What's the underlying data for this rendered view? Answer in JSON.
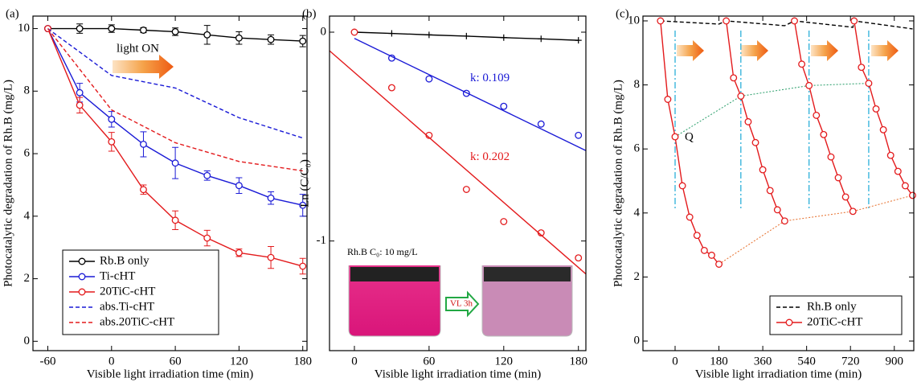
{
  "chart_data": [
    {
      "type": "line",
      "panel_label": "(a)",
      "xlabel": "Visible light irradiation time (min)",
      "ylabel": "Photocatalytic degradation of Rh.B (mg/L)",
      "xlim": [
        -74,
        184
      ],
      "ylim": [
        -0.3,
        10.4
      ],
      "xticks": [
        -60,
        0,
        60,
        120,
        180
      ],
      "yticks": [
        0,
        2,
        4,
        6,
        8,
        10
      ],
      "annotation": "light ON",
      "legend": "lower left",
      "series": [
        {
          "name": "Rb.B only",
          "color": "#000000",
          "style": "solid",
          "marker": "circle",
          "x": [
            -60,
            -30,
            0,
            30,
            60,
            90,
            120,
            150,
            180
          ],
          "values": [
            10,
            10,
            10,
            9.95,
            9.9,
            9.8,
            9.7,
            9.65,
            9.6
          ],
          "errors": [
            0,
            0.15,
            0.12,
            0.08,
            0.12,
            0.3,
            0.2,
            0.15,
            0.18
          ]
        },
        {
          "name": "Ti-cHT",
          "color": "#1a1ad6",
          "style": "solid",
          "marker": "circle",
          "x": [
            -60,
            -30,
            0,
            30,
            60,
            90,
            120,
            150,
            180
          ],
          "values": [
            10,
            7.95,
            7.1,
            6.3,
            5.7,
            5.3,
            4.98,
            4.58,
            4.35
          ],
          "errors": [
            0,
            0.3,
            0.25,
            0.4,
            0.5,
            0.15,
            0.25,
            0.2,
            0.35
          ]
        },
        {
          "name": "20TiC-cHT",
          "color": "#e31a1c",
          "style": "solid",
          "marker": "circle",
          "x": [
            -60,
            -30,
            0,
            30,
            60,
            90,
            120,
            150,
            180
          ],
          "values": [
            10,
            7.55,
            6.38,
            4.85,
            3.87,
            3.3,
            2.83,
            2.68,
            2.4
          ],
          "errors": [
            0,
            0.25,
            0.3,
            0.15,
            0.3,
            0.25,
            0.12,
            0.35,
            0.25
          ]
        },
        {
          "name": "abs.Ti-cHT",
          "color": "#1a1ad6",
          "style": "dashed",
          "marker": "none",
          "x": [
            -60,
            0,
            60,
            120,
            180
          ],
          "values": [
            10,
            8.5,
            8.1,
            7.15,
            6.5
          ]
        },
        {
          "name": "abs.20TiC-cHT",
          "color": "#e31a1c",
          "style": "dashed",
          "marker": "none",
          "x": [
            -60,
            0,
            60,
            120,
            180
          ],
          "values": [
            10,
            7.4,
            6.35,
            5.75,
            5.45
          ]
        }
      ]
    },
    {
      "type": "line",
      "panel_label": "(b)",
      "xlabel": "Visible light irradiation time (min)",
      "ylabel": "Ln (C/C₀)",
      "xlim": [
        -20,
        186
      ],
      "ylim": [
        -1.525,
        0.077
      ],
      "xticks": [
        0,
        60,
        120,
        180
      ],
      "yticks": [
        0,
        -1
      ],
      "inset": {
        "caption": "Rh.B C₀: 10 mg/L",
        "arrow_label": "VL 3h"
      },
      "series": [
        {
          "color": "#000000",
          "style": "solid",
          "marker": "plus",
          "x": [
            0,
            30,
            60,
            90,
            120,
            150,
            180
          ],
          "values": [
            0,
            -0.006,
            -0.013,
            -0.019,
            -0.026,
            -0.032,
            -0.039
          ]
        },
        {
          "color": "#1a1ad6",
          "style": "none",
          "marker": "circle",
          "x": [
            30,
            60,
            90,
            120,
            150,
            180
          ],
          "values": [
            -0.124,
            -0.224,
            -0.293,
            -0.355,
            -0.44,
            -0.494
          ]
        },
        {
          "color": "#e31a1c",
          "style": "none",
          "marker": "circle",
          "x": [
            0,
            30,
            60,
            90,
            120,
            150,
            180
          ],
          "values": [
            0,
            -0.266,
            -0.494,
            -0.753,
            -0.907,
            -0.961,
            -1.081
          ]
        },
        {
          "color": "#1a1ad6",
          "style": "solid",
          "marker": "none",
          "label": "k: 0.109",
          "x": [
            0,
            186
          ],
          "values": [
            -0.03,
            -0.567
          ]
        },
        {
          "color": "#e31a1c",
          "style": "solid",
          "marker": "none",
          "label": "k: 0.202",
          "x": [
            -20,
            186
          ],
          "values": [
            -0.089,
            -1.158
          ]
        }
      ]
    },
    {
      "type": "line",
      "panel_label": "(c)",
      "xlabel": "Visible light irradiation time (min)",
      "ylabel": "Photocatalytic degradation of Rh.B (mg/L)",
      "xlim": [
        -132,
        980
      ],
      "ylim": [
        -0.3,
        10.15
      ],
      "xticks": [
        0,
        180,
        360,
        540,
        720,
        900
      ],
      "yticks": [
        0,
        2,
        4,
        6,
        8,
        10
      ],
      "annotation": "Q",
      "legend": "lower right",
      "vlines": [
        0,
        270,
        550,
        795
      ],
      "vline_color": "#1aa9d6",
      "guide_colors": [
        "#3aa676",
        "#e8793a"
      ],
      "series": [
        {
          "name": "Rh.B only",
          "color": "#000000",
          "style": "dashed",
          "marker": "none",
          "x": [
            -60,
            180,
            210,
            450,
            490,
            730,
            735,
            975
          ],
          "values": [
            10,
            9.9,
            10,
            9.85,
            10,
            9.8,
            10,
            9.75
          ]
        },
        {
          "name": "20TiC-cHT",
          "color": "#e31a1c",
          "style": "solid",
          "marker": "circle",
          "x": [
            -60,
            -30,
            0,
            30,
            60,
            90,
            120,
            150,
            180,
            null,
            210,
            240,
            270,
            300,
            330,
            360,
            390,
            420,
            450,
            null,
            490,
            520,
            550,
            580,
            610,
            640,
            670,
            700,
            730,
            null,
            735,
            765,
            795,
            825,
            855,
            885,
            915,
            945,
            975
          ],
          "values": [
            10,
            7.55,
            6.38,
            4.85,
            3.87,
            3.3,
            2.83,
            2.68,
            2.4,
            null,
            10,
            8.22,
            7.65,
            6.85,
            6.2,
            5.35,
            4.7,
            4.1,
            3.75,
            null,
            10,
            8.65,
            7.98,
            7.05,
            6.45,
            5.75,
            5.1,
            4.5,
            4.05,
            null,
            10,
            8.55,
            8.05,
            7.25,
            6.6,
            5.8,
            5.3,
            4.85,
            4.55
          ]
        }
      ]
    }
  ]
}
